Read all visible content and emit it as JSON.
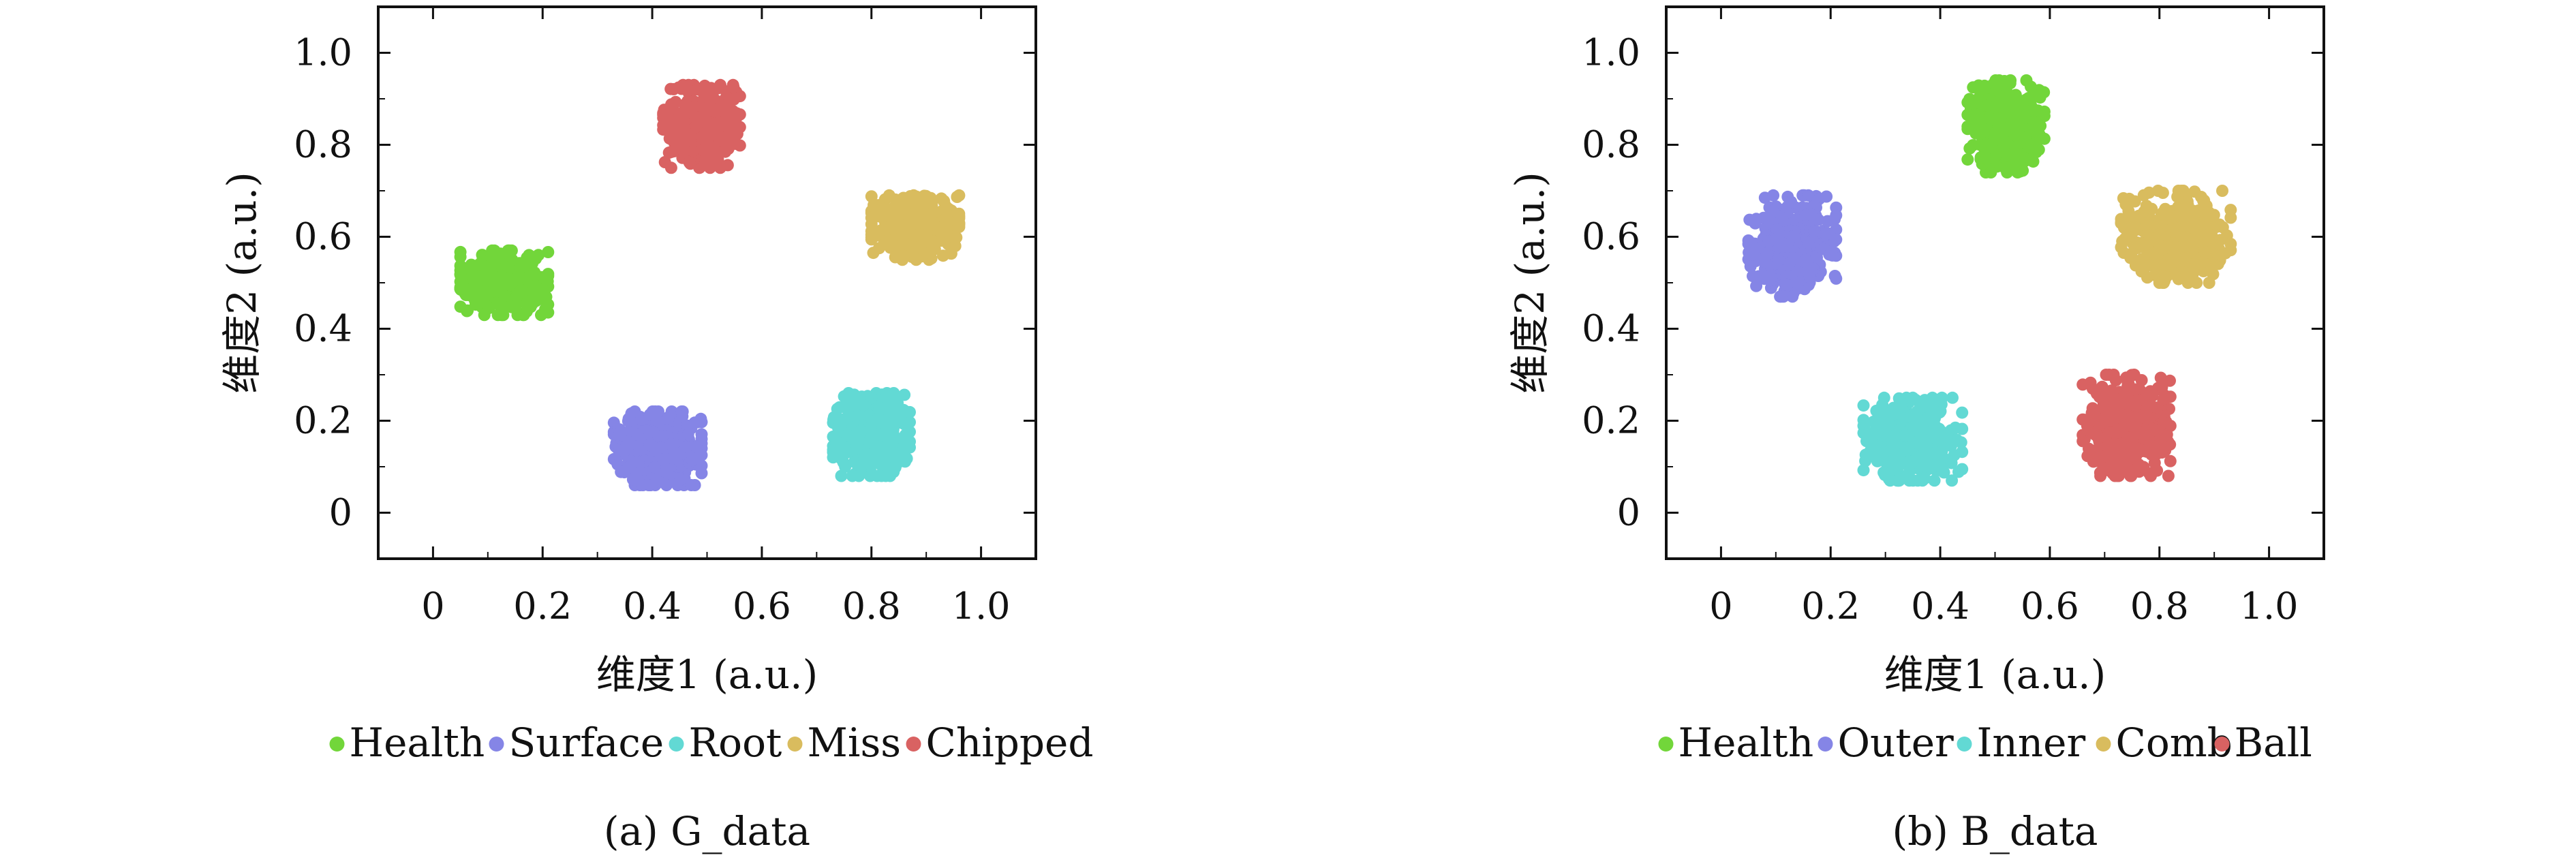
{
  "chart_data": [
    {
      "type": "scatter",
      "caption": "(a) G_data",
      "xlabel": "维度1 (a.u.)",
      "ylabel": "维度2 (a.u.)",
      "xlim": [
        -0.1,
        1.1
      ],
      "ylim": [
        -0.1,
        1.1
      ],
      "xticks": [
        "0",
        "0.2",
        "0.4",
        "0.6",
        "0.8",
        "1.0"
      ],
      "yticks": [
        "0",
        "0.2",
        "0.4",
        "0.6",
        "0.8",
        "1.0"
      ],
      "grid": false,
      "legend_position": "bottom",
      "series": [
        {
          "name": "Health",
          "color": "#72d63a",
          "center": [
            0.13,
            0.5
          ],
          "spread": [
            0.08,
            0.07
          ],
          "count": 420
        },
        {
          "name": "Surface",
          "color": "#8585e6",
          "center": [
            0.41,
            0.14
          ],
          "spread": [
            0.08,
            0.08
          ],
          "count": 420
        },
        {
          "name": "Root",
          "color": "#62d9d4",
          "center": [
            0.8,
            0.17
          ],
          "spread": [
            0.07,
            0.09
          ],
          "count": 420
        },
        {
          "name": "Miss",
          "color": "#d9bc5e",
          "center": [
            0.88,
            0.62
          ],
          "spread": [
            0.08,
            0.07
          ],
          "count": 420
        },
        {
          "name": "Chipped",
          "color": "#d96262",
          "center": [
            0.49,
            0.84
          ],
          "spread": [
            0.07,
            0.09
          ],
          "count": 420
        }
      ]
    },
    {
      "type": "scatter",
      "caption": "(b) B_data",
      "xlabel": "维度1 (a.u.)",
      "ylabel": "维度2 (a.u.)",
      "xlim": [
        -0.1,
        1.1
      ],
      "ylim": [
        -0.1,
        1.1
      ],
      "xticks": [
        "0",
        "0.2",
        "0.4",
        "0.6",
        "0.8",
        "1.0"
      ],
      "yticks": [
        "0",
        "0.2",
        "0.4",
        "0.6",
        "0.8",
        "1.0"
      ],
      "grid": false,
      "legend_position": "bottom",
      "series": [
        {
          "name": "Health",
          "color": "#72d63a",
          "center": [
            0.52,
            0.84
          ],
          "spread": [
            0.07,
            0.1
          ],
          "count": 420
        },
        {
          "name": "Outer",
          "color": "#8585e6",
          "center": [
            0.13,
            0.58
          ],
          "spread": [
            0.08,
            0.11
          ],
          "count": 420
        },
        {
          "name": "Inner",
          "color": "#62d9d4",
          "center": [
            0.35,
            0.16
          ],
          "spread": [
            0.09,
            0.09
          ],
          "count": 420
        },
        {
          "name": "Comb",
          "color": "#d9bc5e",
          "center": [
            0.83,
            0.6
          ],
          "spread": [
            0.1,
            0.1
          ],
          "count": 420
        },
        {
          "name": "Ball",
          "color": "#d96262",
          "center": [
            0.74,
            0.19
          ],
          "spread": [
            0.08,
            0.11
          ],
          "count": 420
        }
      ]
    }
  ]
}
